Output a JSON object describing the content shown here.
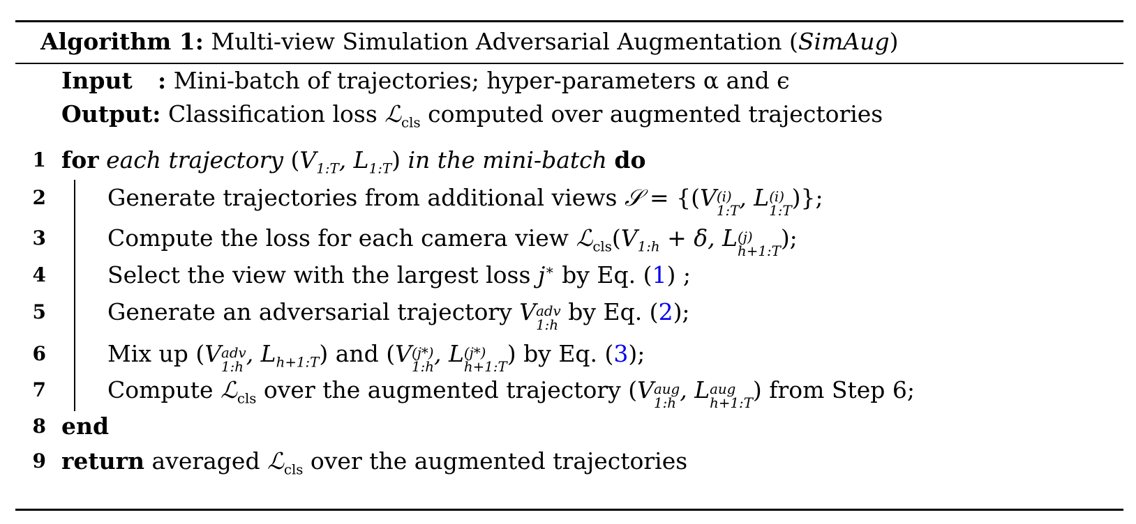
{
  "algorithm": {
    "label": "Algorithm 1:",
    "title_prefix": "Multi-view Simulation Adversarial Augmentation (",
    "title_abbr": "SimAug",
    "title_suffix": ")",
    "input_key": "Input",
    "input_colon": ":",
    "input_text": "Mini-batch of trajectories; hyper-parameters α and ϵ",
    "output_key": "Output:",
    "output_text_pre": "Classification loss ",
    "output_text_post": " computed over augmented trajectories",
    "lines": [
      {
        "num": "1"
      },
      {
        "num": "2"
      },
      {
        "num": "3"
      },
      {
        "num": "4"
      },
      {
        "num": "5"
      },
      {
        "num": "6"
      },
      {
        "num": "7"
      },
      {
        "num": "8"
      },
      {
        "num": "9"
      }
    ],
    "kw_for": "for",
    "kw_do": "do",
    "kw_end": "end",
    "kw_return": "return",
    "l1_a": "each trajectory",
    "l1_b": "in the mini-batch",
    "l2_text": "Generate trajectories from additional views",
    "l3_text": "Compute the loss for each camera view",
    "l4_text": "Select the view with the largest loss",
    "l4_by": "by Eq.",
    "l5_text": "Generate an adversarial trajectory",
    "l5_by": "by Eq.",
    "l6_text": "Mix up",
    "l6_and": "and",
    "l6_by": "by Eq.",
    "l7_text": "Compute",
    "l7_mid": "over the augmented trajectory",
    "l7_end": "from Step 6;",
    "l9_text": "averaged",
    "l9_end": "over the augmented trajectories",
    "ref1": "1",
    "ref2": "2",
    "ref3": "3",
    "loss_symbol": "ℒ",
    "loss_sub": "cls"
  }
}
